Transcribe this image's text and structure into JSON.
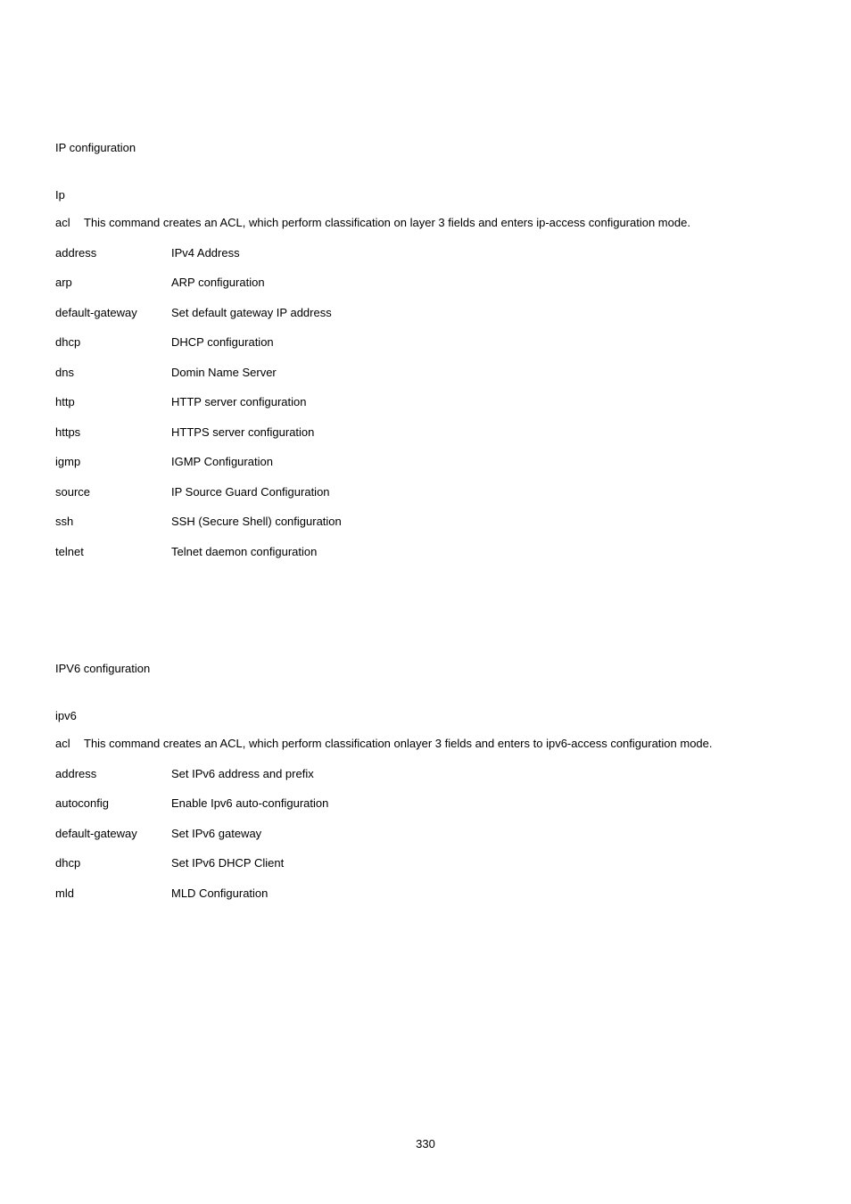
{
  "ip": {
    "title": "IP configuration",
    "root": "Ip",
    "acl_key": "acl",
    "acl_desc": "This command creates an ACL, which perform classification on layer 3 fields and enters ip-access configuration mode.",
    "rows": [
      {
        "k": "address",
        "v": "IPv4 Address"
      },
      {
        "k": "arp",
        "v": " ARP configuration"
      },
      {
        "k": "default-gateway",
        "v": "Set default gateway IP address"
      },
      {
        "k": "dhcp",
        "v": "DHCP configuration"
      },
      {
        "k": "dns",
        "v": "Domin Name Server"
      },
      {
        "k": "http",
        "v": "HTTP server configuration"
      },
      {
        "k": "https",
        "v": "HTTPS server configuration"
      },
      {
        "k": "igmp",
        "v": "IGMP Configuration"
      },
      {
        "k": "source",
        "v": "IP Source Guard Configuration"
      },
      {
        "k": "ssh",
        "v": "SSH (Secure Shell) configuration"
      },
      {
        "k": "telnet",
        "v": " Telnet daemon configuration"
      }
    ]
  },
  "ipv6": {
    "title": "IPV6 configuration",
    "root": "ipv6",
    "acl_key": "acl",
    "acl_desc": "This command creates an ACL, which perform classification onlayer 3 fields and enters to ipv6-access configuration mode.",
    "rows": [
      {
        "k": "address",
        "v": "Set IPv6 address and prefix"
      },
      {
        "k": "autoconfig",
        "v": "Enable Ipv6 auto-configuration"
      },
      {
        "k": "default-gateway",
        "v": "Set IPv6 gateway"
      },
      {
        "k": "dhcp",
        "v": "Set IPv6 DHCP Client"
      },
      {
        "k": "mld",
        "v": "MLD Configuration"
      }
    ]
  },
  "page_number": "330"
}
